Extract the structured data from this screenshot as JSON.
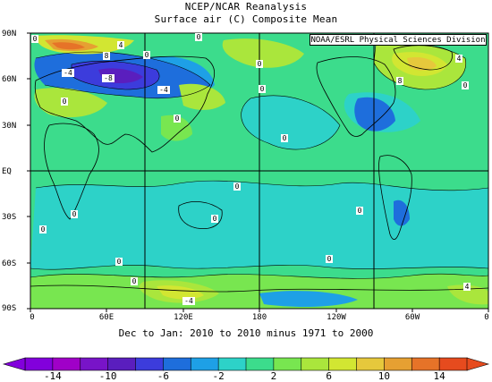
{
  "header": {
    "title": "NCEP/NCAR Reanalysis",
    "subtitle": "Surface air (C) Composite Mean"
  },
  "credit": "NOAA/ESRL Physical Sciences Division",
  "caption": "Dec to Jan: 2010 to 2010 minus 1971 to 2000",
  "lat_labels": [
    "90N",
    "60N",
    "30N",
    "EQ",
    "30S",
    "60S",
    "90S"
  ],
  "lon_labels": [
    "0",
    "60E",
    "120E",
    "180",
    "120W",
    "60W",
    "0"
  ],
  "contour_labels": [
    "0",
    "-4",
    "-8",
    "4",
    "8",
    "-4",
    "0",
    "0",
    "4",
    "8",
    "0",
    "0",
    "0",
    "0",
    "0",
    "0",
    "0",
    "0",
    "0",
    "0",
    "0",
    "0",
    "0",
    "-4",
    "4",
    "0"
  ],
  "colorbar": {
    "ticks": [
      "-14",
      "-10",
      "-6",
      "-2",
      "2",
      "6",
      "10",
      "14"
    ],
    "colors": [
      "#8200dc",
      "#a000c8",
      "#7814c8",
      "#5a1ebe",
      "#3c3cdc",
      "#1e6edc",
      "#1ea0e6",
      "#2dd2c8",
      "#3cdc8c",
      "#78e650",
      "#aae63c",
      "#d2e632",
      "#e6c83c",
      "#e6a032",
      "#e67328",
      "#e64b1e"
    ]
  }
}
